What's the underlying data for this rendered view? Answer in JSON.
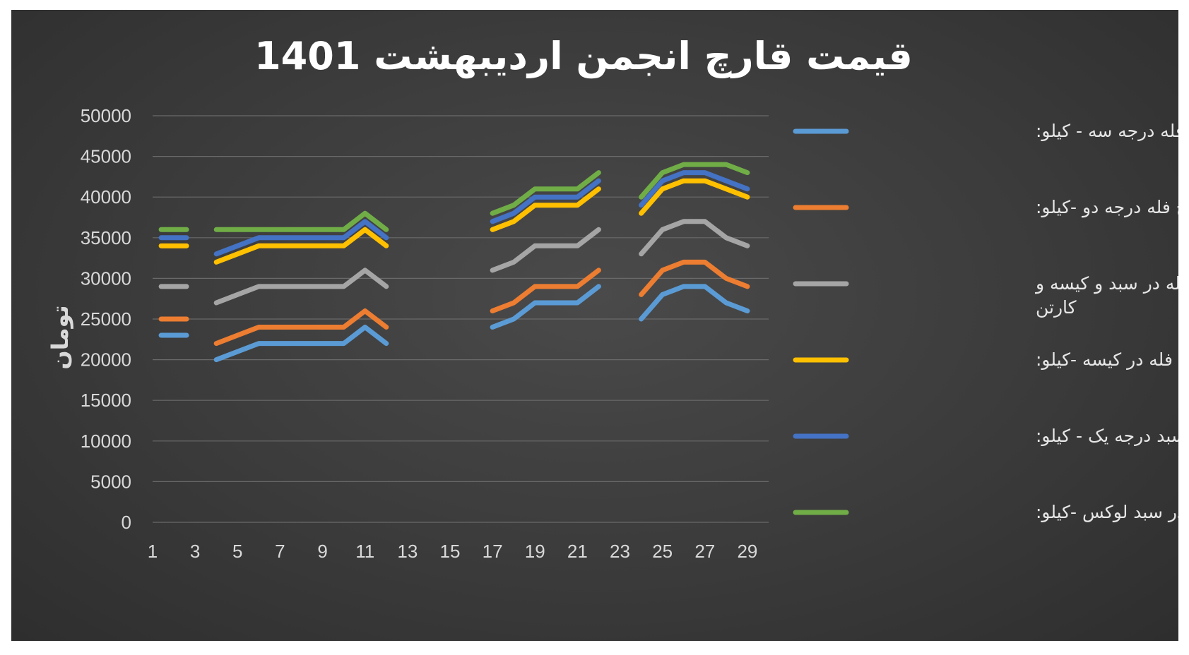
{
  "chart_data": {
    "type": "line",
    "title": "قیمت قارچ انجمن اردیبهشت 1401",
    "xlabel": "",
    "ylabel": "تومان",
    "ylim": [
      0,
      50000
    ],
    "xlim": [
      1,
      30
    ],
    "yticks": [
      0,
      5000,
      10000,
      15000,
      20000,
      25000,
      30000,
      35000,
      40000,
      45000,
      50000
    ],
    "xticks": [
      1,
      3,
      5,
      7,
      9,
      11,
      13,
      15,
      17,
      19,
      21,
      23,
      25,
      27,
      29
    ],
    "grid": true,
    "legend_position": "right",
    "x": [
      1,
      2,
      3,
      4,
      5,
      6,
      7,
      8,
      9,
      10,
      11,
      12,
      13,
      14,
      15,
      16,
      17,
      18,
      19,
      20,
      21,
      22,
      23,
      24,
      25,
      26,
      27,
      28,
      29
    ],
    "series": [
      {
        "name": "قارچ فله درجه سه - کیلو:",
        "color": "#5b9bd5",
        "values": [
          null,
          23000,
          null,
          20000,
          21000,
          22000,
          22000,
          22000,
          22000,
          22000,
          24000,
          22000,
          null,
          null,
          null,
          null,
          24000,
          25000,
          27000,
          27000,
          27000,
          29000,
          null,
          25000,
          28000,
          29000,
          29000,
          27000,
          26000
        ]
      },
      {
        "name": "قارچ فله درجه دو -کیلو:",
        "color": "#ed7d31",
        "values": [
          null,
          25000,
          null,
          22000,
          23000,
          24000,
          24000,
          24000,
          24000,
          24000,
          26000,
          24000,
          null,
          null,
          null,
          null,
          26000,
          27000,
          29000,
          29000,
          29000,
          31000,
          null,
          28000,
          31000,
          32000,
          32000,
          30000,
          29000
        ]
      },
      {
        "name": "قارچ فله در سبد و کیسه و کارتن",
        "label_lines": [
          "قارچ فله در سبد و کیسه و",
          "کارتن"
        ],
        "color": "#a5a5a5",
        "values": [
          null,
          29000,
          null,
          27000,
          28000,
          29000,
          29000,
          29000,
          29000,
          29000,
          31000,
          29000,
          null,
          null,
          null,
          null,
          31000,
          32000,
          34000,
          34000,
          34000,
          36000,
          null,
          33000,
          36000,
          37000,
          37000,
          35000,
          34000
        ]
      },
      {
        "name": "قارچ فله در کیسه -کیلو:",
        "color": "#ffc000",
        "values": [
          null,
          34000,
          null,
          32000,
          33000,
          34000,
          34000,
          34000,
          34000,
          34000,
          36000,
          34000,
          null,
          null,
          null,
          null,
          36000,
          37000,
          39000,
          39000,
          39000,
          41000,
          null,
          38000,
          41000,
          42000,
          42000,
          41000,
          40000
        ]
      },
      {
        "name": "قارچ فله سبد درجه یک - کیلو:",
        "color": "#4472c4",
        "values": [
          null,
          35000,
          null,
          33000,
          34000,
          35000,
          35000,
          35000,
          35000,
          35000,
          37000,
          35000,
          null,
          null,
          null,
          null,
          37000,
          38000,
          40000,
          40000,
          40000,
          42000,
          null,
          39000,
          42000,
          43000,
          43000,
          42000,
          41000
        ]
      },
      {
        "name": "قارچ در سبد لوکس -کیلو:",
        "color": "#70ad47",
        "values": [
          null,
          36000,
          null,
          36000,
          36000,
          36000,
          36000,
          36000,
          36000,
          36000,
          38000,
          36000,
          null,
          null,
          null,
          null,
          38000,
          39000,
          41000,
          41000,
          41000,
          43000,
          null,
          40000,
          43000,
          44000,
          44000,
          44000,
          43000
        ]
      }
    ]
  }
}
